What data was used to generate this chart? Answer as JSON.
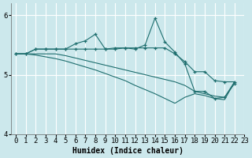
{
  "xlabel": "Humidex (Indice chaleur)",
  "xlim": [
    -0.5,
    23
  ],
  "ylim": [
    4.0,
    6.2
  ],
  "yticks": [
    4,
    5,
    6
  ],
  "xticks": [
    0,
    1,
    2,
    3,
    4,
    5,
    6,
    7,
    8,
    9,
    10,
    11,
    12,
    13,
    14,
    15,
    16,
    17,
    18,
    19,
    20,
    21,
    22,
    23
  ],
  "xtick_labels": [
    "0",
    "1",
    "2",
    "3",
    "4",
    "5",
    "6",
    "7",
    "8",
    "9",
    "10",
    "11",
    "12",
    "13",
    "14",
    "15",
    "16",
    "17",
    "18",
    "19",
    "20",
    "21",
    "22",
    "23"
  ],
  "bg_color": "#cce8ec",
  "line_color": "#1e6e6e",
  "grid_color": "#ffffff",
  "lines": [
    {
      "x": [
        0,
        1,
        2,
        3,
        4,
        5,
        6,
        7,
        8,
        9,
        10,
        11,
        12,
        13,
        14,
        15,
        16,
        17,
        18,
        19,
        20,
        21,
        22
      ],
      "y": [
        5.35,
        5.35,
        5.43,
        5.43,
        5.43,
        5.43,
        5.52,
        5.57,
        5.68,
        5.43,
        5.43,
        5.45,
        5.43,
        5.5,
        5.95,
        5.55,
        5.38,
        5.18,
        4.72,
        4.72,
        4.6,
        4.62,
        4.85
      ],
      "marker": true
    },
    {
      "x": [
        0,
        1,
        2,
        3,
        4,
        5,
        6,
        7,
        8,
        9,
        10,
        11,
        12,
        13,
        14,
        15,
        16,
        17,
        18,
        19,
        20,
        21,
        22
      ],
      "y": [
        5.35,
        5.35,
        5.43,
        5.43,
        5.43,
        5.43,
        5.43,
        5.43,
        5.43,
        5.43,
        5.45,
        5.45,
        5.45,
        5.45,
        5.45,
        5.45,
        5.35,
        5.22,
        5.05,
        5.05,
        4.9,
        4.88,
        4.88
      ],
      "marker": true
    },
    {
      "x": [
        0,
        1,
        2,
        3,
        4,
        5,
        6,
        7,
        8,
        9,
        10,
        11,
        12,
        13,
        14,
        15,
        16,
        17,
        18,
        19,
        20,
        21,
        22
      ],
      "y": [
        5.35,
        5.35,
        5.35,
        5.35,
        5.35,
        5.32,
        5.28,
        5.24,
        5.2,
        5.16,
        5.12,
        5.08,
        5.04,
        5.0,
        4.96,
        4.92,
        4.88,
        4.82,
        4.72,
        4.68,
        4.64,
        4.62,
        4.88
      ],
      "marker": false
    },
    {
      "x": [
        0,
        1,
        2,
        3,
        4,
        5,
        6,
        7,
        8,
        9,
        10,
        11,
        12,
        13,
        14,
        15,
        16,
        17,
        18,
        19,
        20,
        21,
        22
      ],
      "y": [
        5.35,
        5.35,
        5.33,
        5.3,
        5.27,
        5.23,
        5.18,
        5.13,
        5.08,
        5.02,
        4.96,
        4.9,
        4.82,
        4.75,
        4.68,
        4.6,
        4.52,
        4.62,
        4.68,
        4.65,
        4.6,
        4.58,
        4.88
      ],
      "marker": false
    }
  ],
  "tick_fontsize": 6.5,
  "font_family": "monospace"
}
